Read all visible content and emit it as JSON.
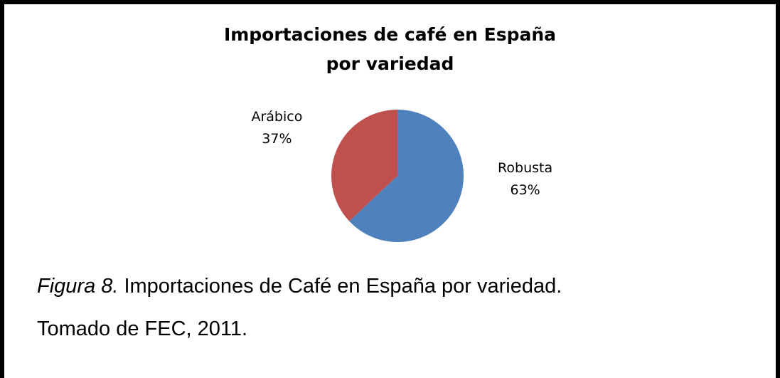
{
  "chart_data": {
    "type": "pie",
    "title": "Importaciones de café en España\npor variedad",
    "categories": [
      "Robusta",
      "Arábico"
    ],
    "values": [
      63,
      37
    ],
    "value_labels": [
      "63%",
      "37%"
    ],
    "colors": [
      "#4f81bd",
      "#c0504d"
    ]
  },
  "caption": {
    "figure": "Figura 8.",
    "text": "Importaciones de Café en España por variedad.",
    "source": "Tomado de FEC, 2011."
  }
}
